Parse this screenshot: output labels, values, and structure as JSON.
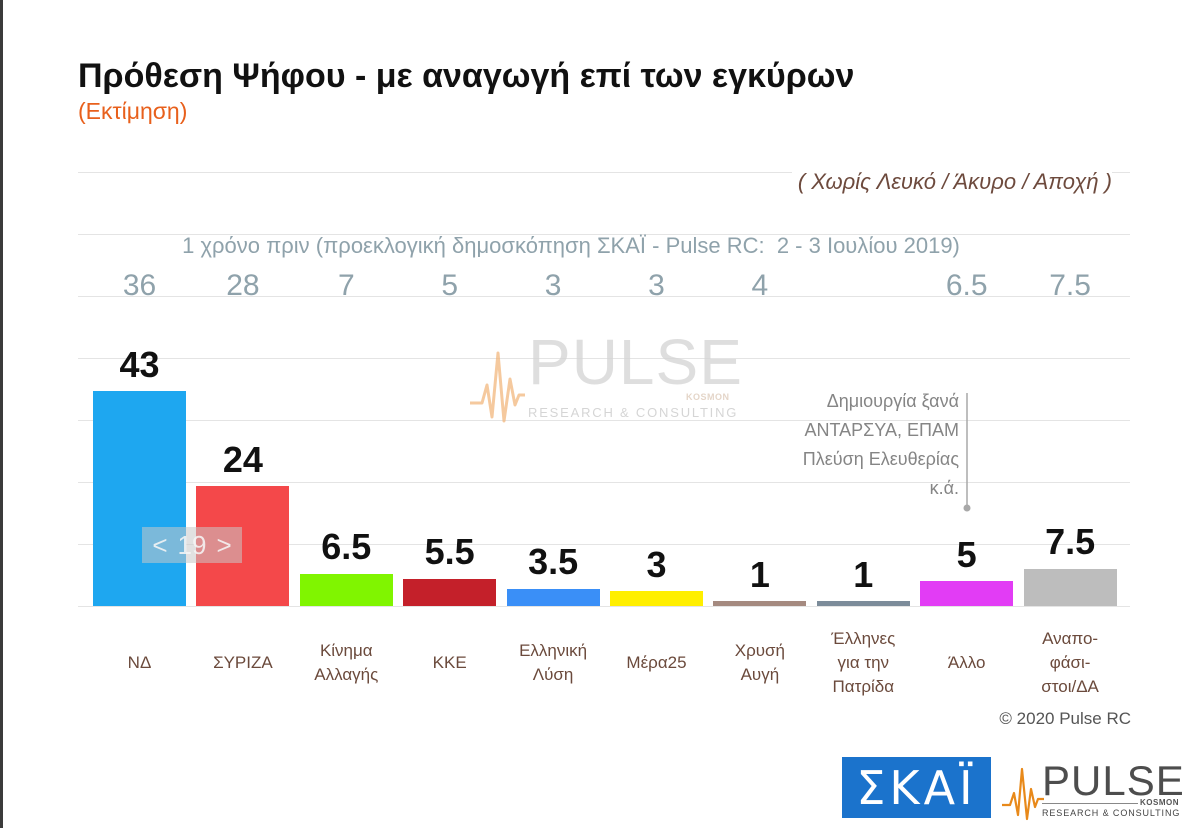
{
  "chart_data": {
    "type": "bar",
    "title": "Πρόθεση Ψήφου - με αναγωγή επί των εγκύρων",
    "subtitle": "(Εκτίμηση)",
    "note": "( Χωρίς Λευκό / Άκυρο / Αποχή )",
    "xlabel": "",
    "ylabel": "",
    "ylim": [
      0,
      87
    ],
    "grid": true,
    "categories": [
      "ΝΔ",
      "ΣΥΡΙΖΑ",
      "Κίνημα\nΑλλαγής",
      "ΚΚΕ",
      "Ελληνική\nΛύση",
      "Μέρα25",
      "Χρυσή\nΑυγή",
      "Έλληνες\nγια την\nΠατρίδα",
      "Άλλο",
      "Αναπο-\nφάσι-\nστοι/ΔΑ"
    ],
    "series": [
      {
        "values": [
          43,
          24,
          6.5,
          5.5,
          3.5,
          3,
          1,
          1,
          5,
          7.5
        ],
        "colors": [
          "#1ea7f0",
          "#f4484a",
          "#80f500",
          "#c4202a",
          "#3a8ff7",
          "#ffef00",
          "#a58a80",
          "#7c8c9a",
          "#e23cf5",
          "#bdbdbd"
        ]
      },
      {
        "name": "1 χρόνο πριν (προεκλογική δημοσκόπηση ΣΚΑΪ - Pulse RC:  2 - 3 Ιουλίου 2019)",
        "values": [
          36,
          28,
          7,
          5,
          3,
          3,
          4,
          null,
          6.5,
          7.5
        ],
        "color": "#8fa2ab"
      }
    ],
    "annotation": [
      "Δημιουργία ξανά",
      "ΑΝΤΑΡΣΥΑ, ΕΠΑΜ",
      "Πλεύση Ελευθερίας",
      "κ.ά."
    ]
  },
  "slide_nav": {
    "prev": "<",
    "page": "19",
    "next": ">"
  },
  "copyright": "© 2020 Pulse RC",
  "watermark": {
    "brand": "PULSE",
    "sub": "KOSMON",
    "tagline": "RESEARCH & CONSULTING",
    "icon": "heartbeat-icon"
  },
  "logos": {
    "skai": "ΣΚΑΪ",
    "pulse": {
      "brand": "PULSE",
      "sub": "KOSMON",
      "tagline": "RESEARCH & CONSULTING",
      "icon": "heartbeat-icon"
    }
  },
  "colors": {
    "title": "#111111",
    "subtitle": "#e8601c",
    "note": "#6d4a3d",
    "category_label": "#6b4a3c",
    "annotation": "#858585",
    "skai_blue": "#1b73cc",
    "pulse_orange": "#e8891a"
  }
}
